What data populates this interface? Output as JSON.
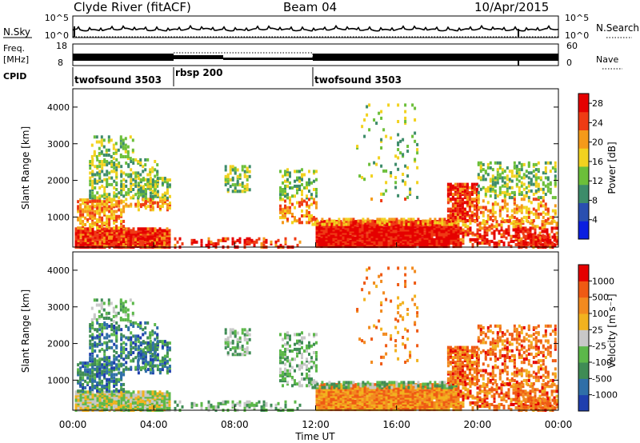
{
  "header": {
    "station": "Clyde River (fitACF)",
    "beam": "Beam 04",
    "date": "10/Apr/2015"
  },
  "noise_panel": {
    "left_label": "N.Sky",
    "right_label": "N.Search",
    "left_ticks": [
      "10^5",
      "10^0"
    ],
    "right_ticks": [
      "10^5",
      "10^0"
    ]
  },
  "freq_panel": {
    "left_label_1": "Freq.",
    "left_label_2": "[MHz]",
    "right_label": "Nave",
    "left_ticks": [
      "18",
      "8"
    ],
    "right_ticks": [
      "60",
      "0"
    ]
  },
  "cpid": {
    "label": "CPID",
    "segments": [
      {
        "name": "twofsound 3503",
        "start": 0,
        "end": 5
      },
      {
        "name": "rbsp 200",
        "start": 5,
        "end": 12
      },
      {
        "name": "twofsound 3503",
        "start": 12,
        "end": 24
      }
    ]
  },
  "chart_data": [
    {
      "type": "heatmap",
      "title": "",
      "quantity": "Power",
      "ylabel": "Slant Range [km]",
      "ylim": [
        180,
        4500
      ],
      "yticks": [
        1000,
        2000,
        3000,
        4000
      ],
      "xlim": [
        0,
        24
      ],
      "colorbar_label": "Power [dB]",
      "colorbar_ticks": [
        "4",
        "8",
        "12",
        "16",
        "20",
        "24",
        "28"
      ],
      "colorbar_range": [
        0,
        30
      ],
      "colorbar_colors": [
        "#0b1fe0",
        "#2a4fb0",
        "#3d8c6a",
        "#6cbf3a",
        "#f2d21f",
        "#f59a1a",
        "#ef3b14",
        "#e50000"
      ]
    },
    {
      "type": "heatmap",
      "title": "",
      "quantity": "Velocity",
      "ylabel": "Slant Range [km]",
      "ylim": [
        180,
        4500
      ],
      "yticks": [
        1000,
        2000,
        3000,
        4000
      ],
      "xlim": [
        0,
        24
      ],
      "colorbar_label": "Velocity [m s⁻¹]",
      "colorbar_ticks": [
        "1000",
        "500",
        "100",
        "25",
        "-25",
        "-100",
        "-500",
        "-1000"
      ],
      "colorbar_colors": [
        "#1f3fae",
        "#2f6fa8",
        "#3f8c55",
        "#5cb84a",
        "#c8c8c8",
        "#f2b21f",
        "#f28a1f",
        "#ef5a14",
        "#e50000"
      ]
    }
  ],
  "x_axis": {
    "ticks": [
      "00:00",
      "04:00",
      "08:00",
      "12:00",
      "16:00",
      "20:00",
      "00:00"
    ],
    "label": "Time UT"
  }
}
